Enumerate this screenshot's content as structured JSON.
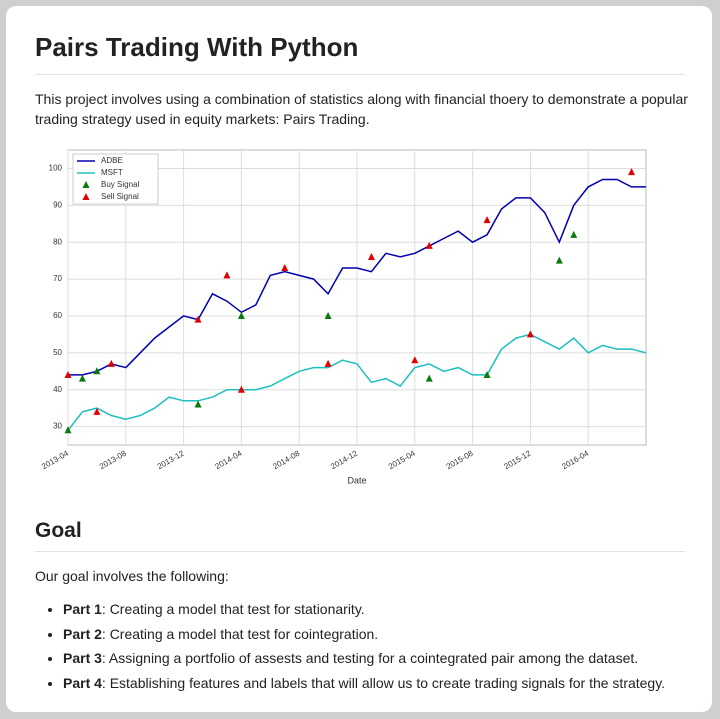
{
  "header": {
    "title": "Pairs Trading With Python"
  },
  "intro": "This project involves using a combination of statistics along with financial thoery to demonstrate a popular trading strategy used in equity markets: Pairs Trading.",
  "chart_data": {
    "type": "line",
    "xlabel": "Date",
    "grid": true,
    "legend": "upper left",
    "x": [
      "2013-04",
      "2013-05",
      "2013-06",
      "2013-07",
      "2013-08",
      "2013-09",
      "2013-10",
      "2013-11",
      "2013-12",
      "2014-01",
      "2014-02",
      "2014-03",
      "2014-04",
      "2014-05",
      "2014-06",
      "2014-07",
      "2014-08",
      "2014-09",
      "2014-10",
      "2014-11",
      "2014-12",
      "2015-01",
      "2015-02",
      "2015-03",
      "2015-04",
      "2015-05",
      "2015-06",
      "2015-07",
      "2015-08",
      "2015-09",
      "2015-10",
      "2015-11",
      "2015-12",
      "2016-01",
      "2016-02",
      "2016-03",
      "2016-04",
      "2016-05",
      "2016-06",
      "2016-07",
      "2016-08"
    ],
    "series": [
      {
        "name": "ADBE",
        "color": "#0000b0",
        "type": "line",
        "values": [
          44,
          44,
          45,
          47,
          46,
          50,
          54,
          57,
          60,
          59,
          66,
          64,
          61,
          63,
          71,
          72,
          71,
          70,
          66,
          73,
          73,
          72,
          77,
          76,
          77,
          79,
          81,
          83,
          80,
          82,
          89,
          92,
          92,
          88,
          80,
          90,
          95,
          97,
          97,
          95,
          95
        ]
      },
      {
        "name": "MSFT",
        "color": "#1fbfbf",
        "type": "line",
        "values": [
          29,
          34,
          35,
          33,
          32,
          33,
          35,
          38,
          37,
          37,
          38,
          40,
          40,
          40,
          41,
          43,
          45,
          46,
          46,
          48,
          47,
          42,
          43,
          41,
          46,
          47,
          45,
          46,
          44,
          44,
          51,
          54,
          55,
          53,
          51,
          54,
          50,
          52,
          51,
          51,
          50
        ]
      },
      {
        "name": "Buy Signal",
        "color": "#0a7a0a",
        "type": "scatter",
        "x": [
          "2013-05",
          "2014-04",
          "2014-10",
          "2016-02",
          "2016-03",
          "2013-04",
          "2013-06",
          "2014-01",
          "2015-05",
          "2015-09"
        ],
        "values": [
          43,
          60,
          60,
          75,
          82,
          29,
          45,
          36,
          43,
          44
        ]
      },
      {
        "name": "Sell Signal",
        "color": "#e00000",
        "type": "scatter",
        "x": [
          "2013-04",
          "2013-07",
          "2014-01",
          "2014-03",
          "2014-07",
          "2015-01",
          "2015-05",
          "2015-09",
          "2016-07",
          "2013-06",
          "2014-04",
          "2014-10",
          "2015-04",
          "2015-12"
        ],
        "values": [
          44,
          47,
          59,
          71,
          73,
          76,
          79,
          86,
          99,
          34,
          40,
          47,
          48,
          55
        ]
      }
    ],
    "xlim": [
      "2013-04",
      "2016-08"
    ],
    "xticks": [
      "2013-04",
      "2013-08",
      "2013-12",
      "2014-04",
      "2014-08",
      "2014-12",
      "2015-04",
      "2015-08",
      "2015-12",
      "2016-04"
    ],
    "ylim": [
      25,
      105
    ],
    "yticks": [
      30,
      40,
      50,
      60,
      70,
      80,
      90,
      100
    ]
  },
  "goal": {
    "heading": "Goal",
    "lead": "Our goal involves the following:",
    "items": [
      {
        "label": "Part 1",
        "text": ": Creating a model that test for stationarity."
      },
      {
        "label": "Part 2",
        "text": ": Creating a model that test for cointegration."
      },
      {
        "label": "Part 3",
        "text": ": Assigning a portfolio of assests and testing for a cointegrated pair among the dataset."
      },
      {
        "label": "Part 4",
        "text": ": Establishing features and labels that will allow us to create trading signals for the strategy."
      }
    ]
  }
}
